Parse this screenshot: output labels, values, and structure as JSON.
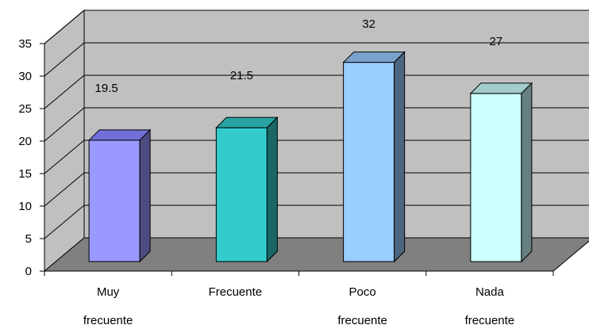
{
  "chart_data": {
    "type": "bar",
    "style": "3d-column",
    "categories": [
      [
        "Muy",
        "frecuente"
      ],
      [
        "Frecuente"
      ],
      [
        "Poco",
        "frecuente"
      ],
      [
        "Nada",
        "frecuente"
      ]
    ],
    "values": [
      19.5,
      21.5,
      32,
      27
    ],
    "data_labels": [
      "19.5",
      "21.5",
      "32",
      "27"
    ],
    "yticks": [
      "0",
      "5",
      "10",
      "15",
      "20",
      "25",
      "30",
      "35"
    ],
    "ylim": [
      0,
      35
    ],
    "grid": true,
    "legend": "none",
    "colors": {
      "wall": "#c0c0c0",
      "floor": "#808080",
      "bars": [
        {
          "front": "#9999ff",
          "top": "#7070d8",
          "side": "#4c4c80"
        },
        {
          "front": "#33cccc",
          "top": "#29a3a3",
          "side": "#1a6666"
        },
        {
          "front": "#99ccff",
          "top": "#7aa3cc",
          "side": "#4c6680"
        },
        {
          "front": "#ccffff",
          "top": "#a3cccc",
          "side": "#668080"
        }
      ]
    }
  }
}
